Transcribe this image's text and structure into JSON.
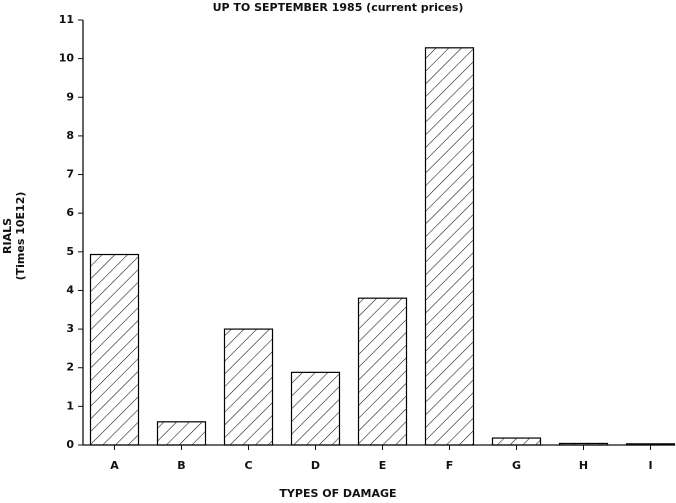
{
  "chart_data": {
    "type": "bar",
    "title": "UP TO SEPTEMBER 1985 (current prices)",
    "ylabel": "RIALS",
    "ylabel_sub": "(Times 10E12)",
    "xlabel": "TYPES OF DAMAGE",
    "categories": [
      "A",
      "B",
      "C",
      "D",
      "E",
      "F",
      "G",
      "H",
      "I"
    ],
    "values": [
      4.93,
      0.6,
      3.0,
      1.88,
      3.8,
      10.28,
      0.18,
      0.04,
      0.03
    ],
    "color": "#000000",
    "ylim": [
      0,
      11
    ],
    "yticks": [
      0,
      1,
      2,
      3,
      4,
      5,
      6,
      7,
      8,
      9,
      10,
      11
    ],
    "grid": false
  }
}
